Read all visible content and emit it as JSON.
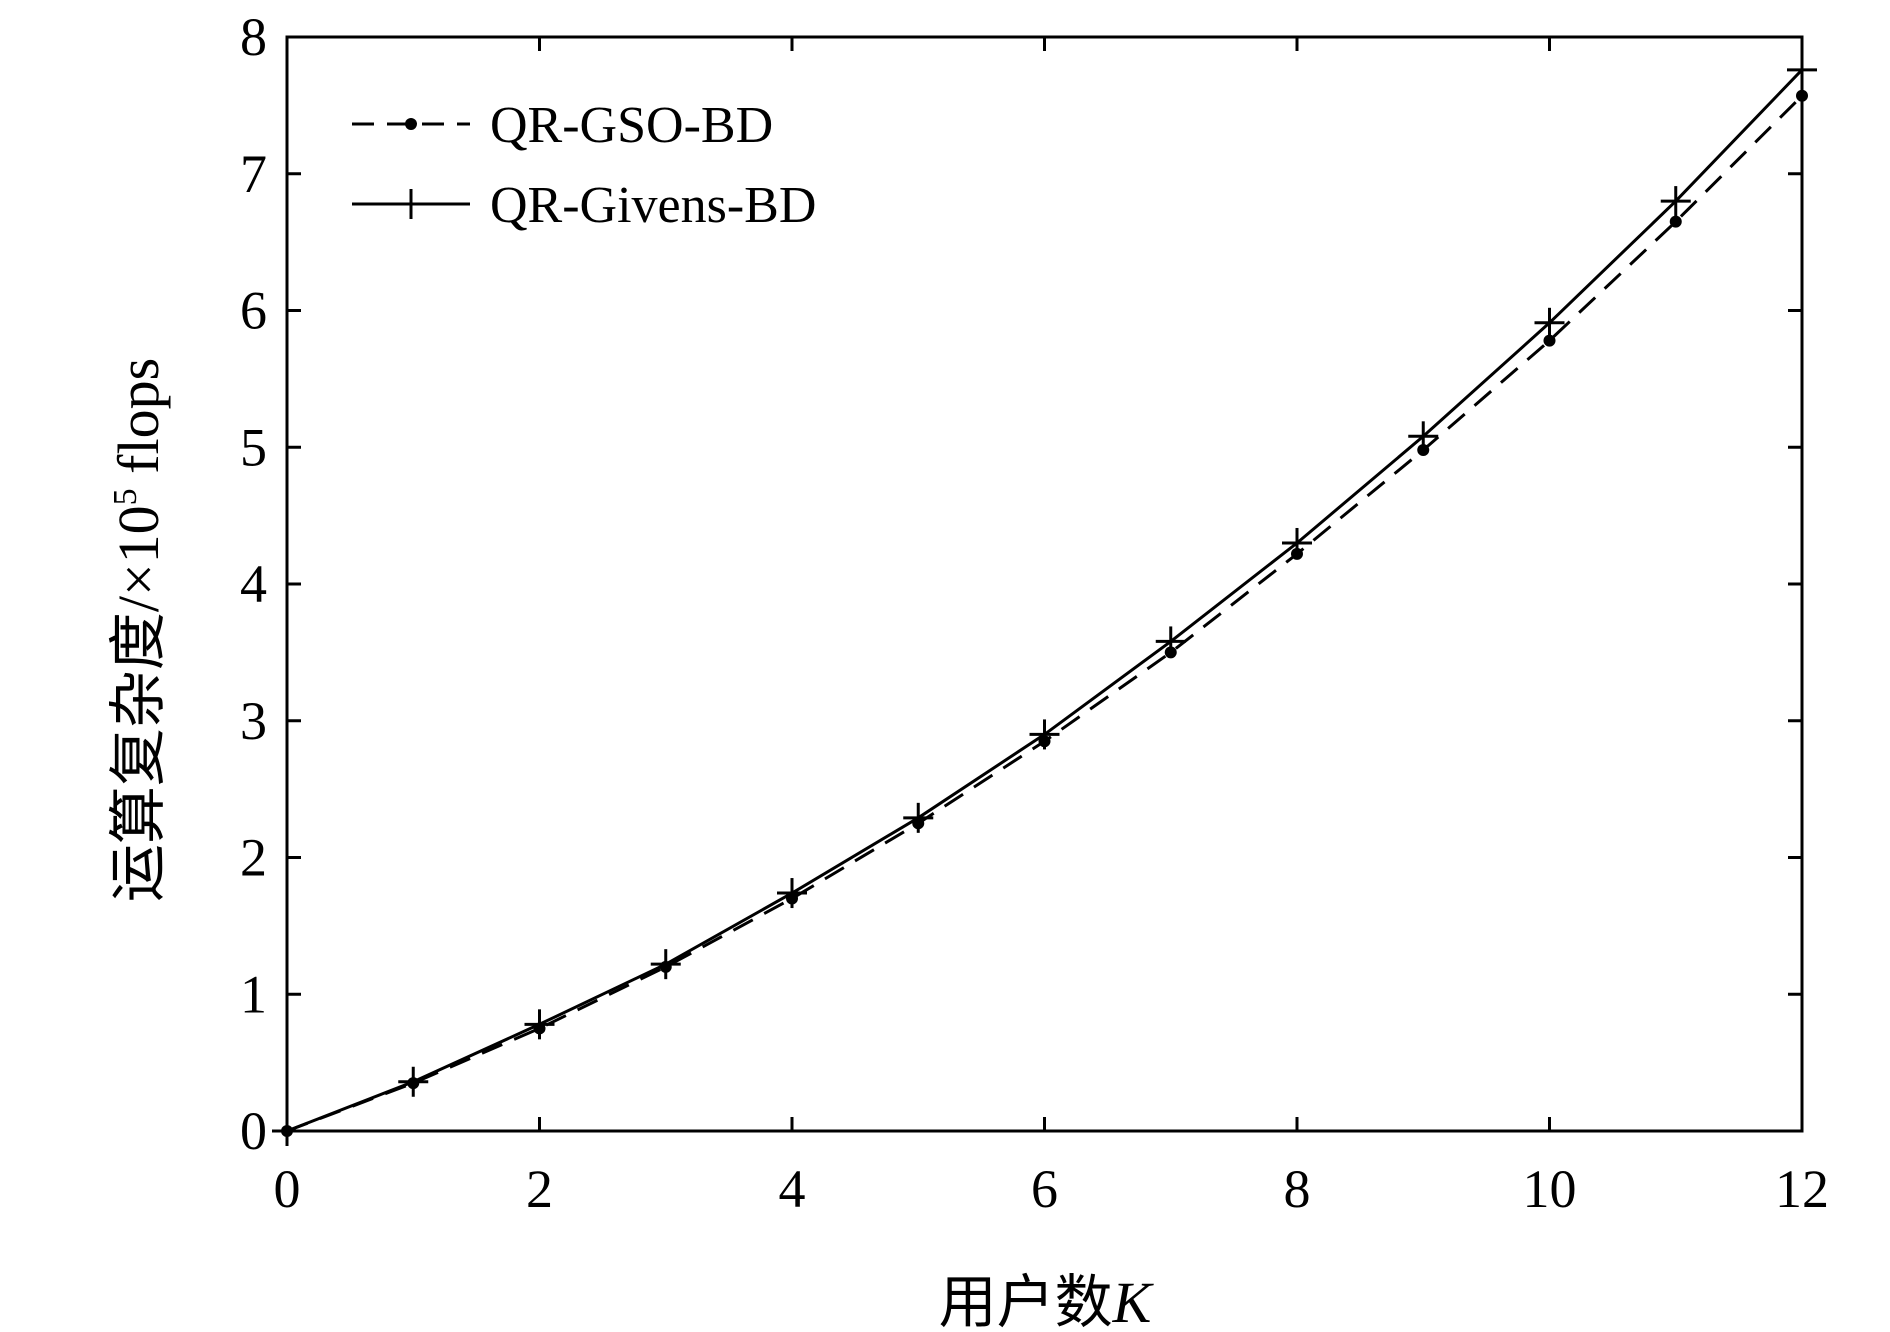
{
  "chart_data": {
    "type": "line",
    "title": "",
    "xlabel": "用户数",
    "xlabel_var": "K",
    "ylabel_prefix": "运算复杂度/×10",
    "ylabel_exp": "5",
    "ylabel_suffix": " flops",
    "xlim": [
      0,
      12
    ],
    "ylim": [
      0,
      8
    ],
    "xticks": [
      0,
      2,
      4,
      6,
      8,
      10,
      12
    ],
    "yticks": [
      0,
      1,
      2,
      3,
      4,
      5,
      6,
      7,
      8
    ],
    "grid": false,
    "legend_position": "top-left",
    "x": [
      0,
      1,
      2,
      3,
      4,
      5,
      6,
      7,
      8,
      9,
      10,
      11,
      12
    ],
    "series": [
      {
        "name": "QR-GSO-BD",
        "line_style": "dashed",
        "marker": "dot",
        "color": "#000000",
        "values": [
          0,
          0.35,
          0.75,
          1.2,
          1.7,
          2.25,
          2.85,
          3.5,
          4.22,
          4.98,
          5.78,
          6.65,
          7.57
        ]
      },
      {
        "name": "QR-Givens-BD",
        "line_style": "solid",
        "marker": "plus",
        "color": "#000000",
        "values": [
          0,
          0.36,
          0.78,
          1.22,
          1.74,
          2.29,
          2.9,
          3.58,
          4.3,
          5.08,
          5.91,
          6.8,
          7.76
        ]
      }
    ]
  }
}
